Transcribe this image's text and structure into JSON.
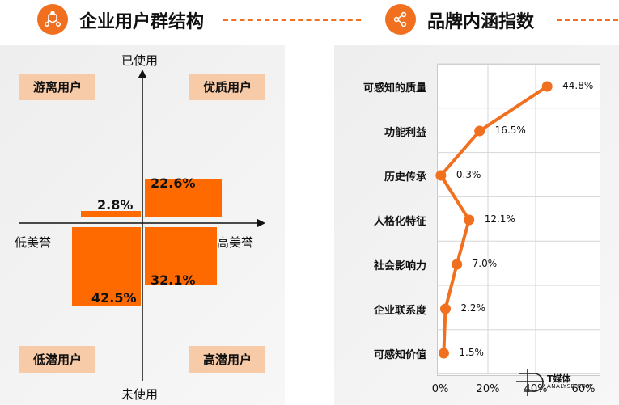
{
  "left_section": {
    "title": "企业用户群结构",
    "icon": "hexagon-molecule-icon",
    "quadrants": {
      "top_left": "游离用户",
      "top_right": "优质用户",
      "bottom_left": "低潜用户",
      "bottom_right": "高潜用户"
    },
    "axis": {
      "top": "已使用",
      "bottom": "未使用",
      "left": "低美誉",
      "right": "高美誉"
    }
  },
  "right_section": {
    "title": "品牌内涵指数",
    "icon": "share-nodes-icon"
  },
  "chart_data": [
    {
      "type": "bar",
      "categories": [
        "游离用户",
        "优质用户",
        "低潜用户",
        "高潜用户"
      ],
      "values": [
        2.8,
        22.6,
        42.5,
        32.1
      ],
      "value_labels": [
        "2.8%",
        "22.6%",
        "42.5%",
        "32.1%"
      ]
    },
    {
      "type": "line",
      "orientation": "horizontal",
      "categories": [
        "可感知的质量",
        "功能利益",
        "历史传承",
        "人格化特征",
        "社会影响力",
        "企业联系度",
        "可感知价值"
      ],
      "values": [
        44.8,
        16.5,
        0.3,
        12.1,
        7.0,
        2.2,
        1.5
      ],
      "value_labels": [
        "44.8%",
        "16.5%",
        "0.3%",
        "12.1%",
        "7.0%",
        "2.2%",
        "1.5%"
      ],
      "xlim": [
        0,
        60
      ],
      "xticks": [
        "0%",
        "20%",
        "40%",
        "60%"
      ],
      "grid": true
    }
  ],
  "logo": {
    "name": "T媒体",
    "sub": "ANALYSE.COM"
  },
  "colors": {
    "accent": "#F07020",
    "bar": "#FF6A00",
    "quadrant_fill": "#F8CBA8"
  }
}
